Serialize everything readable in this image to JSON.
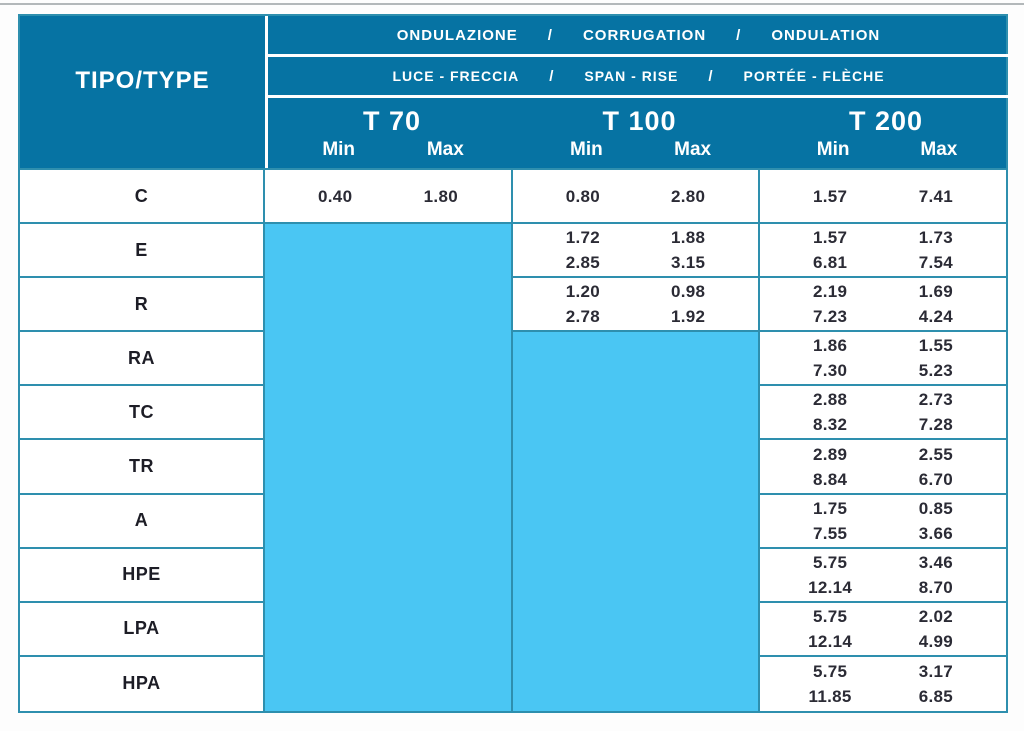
{
  "table": {
    "tipo_header": "TIPO/TYPE",
    "divider": "/",
    "corrugation_parts": [
      "ONDULAZIONE",
      "CORRUGATION",
      "ONDULATION"
    ],
    "span_rise_parts": [
      "LUCE - FRECCIA",
      "SPAN - RISE",
      "PORTÉE - FLÈCHE"
    ],
    "groups": [
      {
        "label": "T 70",
        "min_label": "Min",
        "max_label": "Max"
      },
      {
        "label": "T 100",
        "min_label": "Min",
        "max_label": "Max"
      },
      {
        "label": "T 200",
        "min_label": "Min",
        "max_label": "Max"
      }
    ],
    "rows": [
      {
        "type": "C",
        "t70": {
          "min": [
            "0.40"
          ],
          "max": [
            "1.80"
          ]
        },
        "t100": {
          "min": [
            "0.80"
          ],
          "max": [
            "2.80"
          ]
        },
        "t200": {
          "min": [
            "1.57"
          ],
          "max": [
            "7.41"
          ]
        }
      },
      {
        "type": "E",
        "t70": null,
        "t100": {
          "min": [
            "1.72",
            "2.85"
          ],
          "max": [
            "1.88",
            "3.15"
          ]
        },
        "t200": {
          "min": [
            "1.57",
            "6.81"
          ],
          "max": [
            "1.73",
            "7.54"
          ]
        }
      },
      {
        "type": "R",
        "t70": null,
        "t100": {
          "min": [
            "1.20",
            "2.78"
          ],
          "max": [
            "0.98",
            "1.92"
          ]
        },
        "t200": {
          "min": [
            "2.19",
            "7.23"
          ],
          "max": [
            "1.69",
            "4.24"
          ]
        }
      },
      {
        "type": "RA",
        "t70": null,
        "t100": null,
        "t200": {
          "min": [
            "1.86",
            "7.30"
          ],
          "max": [
            "1.55",
            "5.23"
          ]
        }
      },
      {
        "type": "TC",
        "t70": null,
        "t100": null,
        "t200": {
          "min": [
            "2.88",
            "8.32"
          ],
          "max": [
            "2.73",
            "7.28"
          ]
        }
      },
      {
        "type": "TR",
        "t70": null,
        "t100": null,
        "t200": {
          "min": [
            "2.89",
            "8.84"
          ],
          "max": [
            "2.55",
            "6.70"
          ]
        }
      },
      {
        "type": "A",
        "t70": null,
        "t100": null,
        "t200": {
          "min": [
            "1.75",
            "7.55"
          ],
          "max": [
            "0.85",
            "3.66"
          ]
        }
      },
      {
        "type": "HPE",
        "t70": null,
        "t100": null,
        "t200": {
          "min": [
            "5.75",
            "12.14"
          ],
          "max": [
            "3.46",
            "8.70"
          ]
        }
      },
      {
        "type": "LPA",
        "t70": null,
        "t100": null,
        "t200": {
          "min": [
            "5.75",
            "12.14"
          ],
          "max": [
            "2.02",
            "4.99"
          ]
        }
      },
      {
        "type": "HPA",
        "t70": null,
        "t100": null,
        "t200": {
          "min": [
            "5.75",
            "11.85"
          ],
          "max": [
            "3.17",
            "6.85"
          ]
        }
      }
    ],
    "colors": {
      "header_blue": "#0673a3",
      "empty_fill_blue": "#4ac6f3",
      "grid_line_teal": "#2e8fae",
      "header_text": "#ffffff",
      "body_text": "#2b2b35"
    }
  }
}
